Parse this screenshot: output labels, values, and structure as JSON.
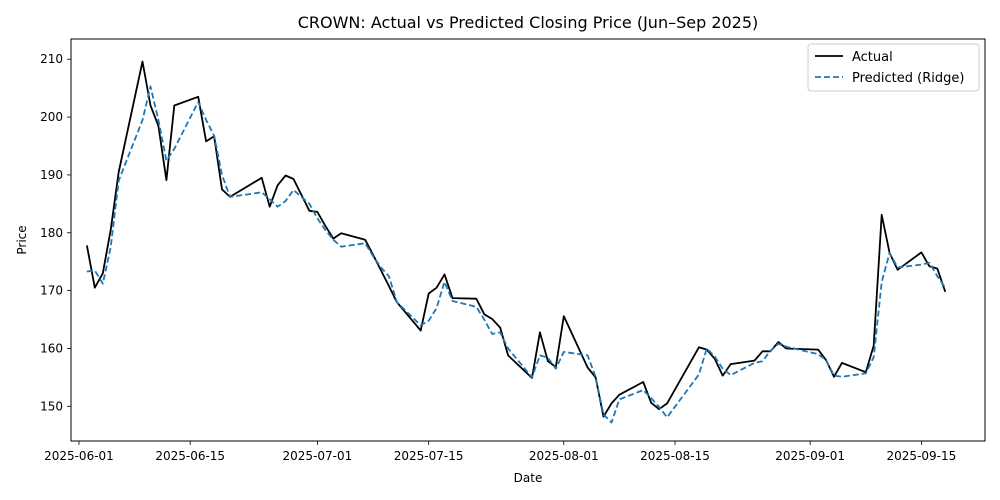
{
  "chart_data": {
    "type": "line",
    "title": "CROWN: Actual vs Predicted Closing Price (Jun–Sep 2025)",
    "xlabel": "Date",
    "ylabel": "Price",
    "xlim": [
      "2025-05-31",
      "2025-09-23"
    ],
    "ylim": [
      144.0,
      213.5
    ],
    "x_ticks": [
      "2025-06-01",
      "2025-06-15",
      "2025-07-01",
      "2025-07-15",
      "2025-08-01",
      "2025-08-15",
      "2025-09-01",
      "2025-09-15"
    ],
    "y_ticks": [
      150,
      160,
      170,
      180,
      190,
      200,
      210
    ],
    "grid": false,
    "legend": "top-right",
    "series": [
      {
        "name": "Actual",
        "color": "#000000",
        "style": "solid",
        "points": [
          [
            "2025-06-02",
            177.8
          ],
          [
            "2025-06-03",
            170.5
          ],
          [
            "2025-06-04",
            173.0
          ],
          [
            "2025-06-05",
            180.5
          ],
          [
            "2025-06-06",
            190.5
          ],
          [
            "2025-06-09",
            209.6
          ],
          [
            "2025-06-10",
            202.0
          ],
          [
            "2025-06-11",
            198.5
          ],
          [
            "2025-06-12",
            189.1
          ],
          [
            "2025-06-13",
            202.0
          ],
          [
            "2025-06-16",
            203.5
          ],
          [
            "2025-06-17",
            195.8
          ],
          [
            "2025-06-18",
            196.7
          ],
          [
            "2025-06-19",
            187.5
          ],
          [
            "2025-06-20",
            186.2
          ],
          [
            "2025-06-24",
            189.5
          ],
          [
            "2025-06-25",
            184.5
          ],
          [
            "2025-06-26",
            188.2
          ],
          [
            "2025-06-27",
            189.9
          ],
          [
            "2025-06-28",
            189.3
          ],
          [
            "2025-06-30",
            183.8
          ],
          [
            "2025-07-01",
            183.6
          ],
          [
            "2025-07-02",
            181.2
          ],
          [
            "2025-07-03",
            179.0
          ],
          [
            "2025-07-04",
            179.9
          ],
          [
            "2025-07-07",
            178.8
          ],
          [
            "2025-07-08",
            176.2
          ],
          [
            "2025-07-09",
            173.5
          ],
          [
            "2025-07-10",
            170.8
          ],
          [
            "2025-07-11",
            168.0
          ],
          [
            "2025-07-14",
            163.1
          ],
          [
            "2025-07-15",
            169.5
          ],
          [
            "2025-07-16",
            170.5
          ],
          [
            "2025-07-17",
            172.8
          ],
          [
            "2025-07-18",
            168.7
          ],
          [
            "2025-07-21",
            168.6
          ],
          [
            "2025-07-22",
            165.9
          ],
          [
            "2025-07-23",
            165.1
          ],
          [
            "2025-07-24",
            163.6
          ],
          [
            "2025-07-25",
            158.8
          ],
          [
            "2025-07-28",
            154.9
          ],
          [
            "2025-07-29",
            162.8
          ],
          [
            "2025-07-30",
            157.8
          ],
          [
            "2025-07-31",
            156.8
          ],
          [
            "2025-08-01",
            165.6
          ],
          [
            "2025-08-04",
            156.7
          ],
          [
            "2025-08-05",
            155.0
          ],
          [
            "2025-08-06",
            148.2
          ],
          [
            "2025-08-07",
            150.5
          ],
          [
            "2025-08-08",
            152.0
          ],
          [
            "2025-08-11",
            154.2
          ],
          [
            "2025-08-12",
            150.6
          ],
          [
            "2025-08-13",
            149.5
          ],
          [
            "2025-08-14",
            150.5
          ],
          [
            "2025-08-18",
            160.2
          ],
          [
            "2025-08-19",
            159.8
          ],
          [
            "2025-08-20",
            158.2
          ],
          [
            "2025-08-21",
            155.3
          ],
          [
            "2025-08-22",
            157.3
          ],
          [
            "2025-08-25",
            157.9
          ],
          [
            "2025-08-26",
            159.5
          ],
          [
            "2025-08-27",
            159.5
          ],
          [
            "2025-08-28",
            161.1
          ],
          [
            "2025-08-29",
            160.0
          ],
          [
            "2025-09-02",
            159.8
          ],
          [
            "2025-09-03",
            158.0
          ],
          [
            "2025-09-04",
            155.1
          ],
          [
            "2025-09-05",
            157.5
          ],
          [
            "2025-09-08",
            155.9
          ],
          [
            "2025-09-09",
            160.5
          ],
          [
            "2025-09-10",
            183.1
          ],
          [
            "2025-09-11",
            176.5
          ],
          [
            "2025-09-12",
            173.6
          ],
          [
            "2025-09-15",
            176.6
          ],
          [
            "2025-09-16",
            174.2
          ],
          [
            "2025-09-17",
            173.8
          ],
          [
            "2025-09-18",
            169.8
          ]
        ]
      },
      {
        "name": "Predicted (Ridge)",
        "color": "#1f77b4",
        "style": "dashed",
        "points": [
          [
            "2025-06-02",
            173.3
          ],
          [
            "2025-06-03",
            173.5
          ],
          [
            "2025-06-04",
            171.2
          ],
          [
            "2025-06-05",
            177.5
          ],
          [
            "2025-06-06",
            189.0
          ],
          [
            "2025-06-09",
            199.5
          ],
          [
            "2025-06-10",
            205.3
          ],
          [
            "2025-06-11",
            199.5
          ],
          [
            "2025-06-12",
            192.5
          ],
          [
            "2025-06-13",
            194.5
          ],
          [
            "2025-06-16",
            202.6
          ],
          [
            "2025-06-17",
            199.5
          ],
          [
            "2025-06-18",
            196.8
          ],
          [
            "2025-06-19",
            190.0
          ],
          [
            "2025-06-20",
            186.2
          ],
          [
            "2025-06-24",
            187.0
          ],
          [
            "2025-06-25",
            185.8
          ],
          [
            "2025-06-26",
            184.5
          ],
          [
            "2025-06-27",
            185.5
          ],
          [
            "2025-06-28",
            187.4
          ],
          [
            "2025-06-30",
            185.0
          ],
          [
            "2025-07-01",
            182.5
          ],
          [
            "2025-07-02",
            180.5
          ],
          [
            "2025-07-03",
            178.8
          ],
          [
            "2025-07-04",
            177.6
          ],
          [
            "2025-07-07",
            178.2
          ],
          [
            "2025-07-08",
            176.0
          ],
          [
            "2025-07-09",
            174.0
          ],
          [
            "2025-07-10",
            172.5
          ],
          [
            "2025-07-11",
            168.0
          ],
          [
            "2025-07-14",
            164.0
          ],
          [
            "2025-07-15",
            164.8
          ],
          [
            "2025-07-16",
            167.0
          ],
          [
            "2025-07-17",
            171.5
          ],
          [
            "2025-07-18",
            168.2
          ],
          [
            "2025-07-21",
            167.2
          ],
          [
            "2025-07-22",
            165.0
          ],
          [
            "2025-07-23",
            162.5
          ],
          [
            "2025-07-24",
            162.8
          ],
          [
            "2025-07-25",
            160.0
          ],
          [
            "2025-07-28",
            155.0
          ],
          [
            "2025-07-29",
            158.8
          ],
          [
            "2025-07-30",
            158.4
          ],
          [
            "2025-07-31",
            156.5
          ],
          [
            "2025-08-01",
            159.4
          ],
          [
            "2025-08-04",
            158.8
          ],
          [
            "2025-08-05",
            155.1
          ],
          [
            "2025-08-06",
            148.6
          ],
          [
            "2025-08-07",
            147.2
          ],
          [
            "2025-08-08",
            151.2
          ],
          [
            "2025-08-11",
            152.8
          ],
          [
            "2025-08-12",
            151.4
          ],
          [
            "2025-08-13",
            149.9
          ],
          [
            "2025-08-14",
            148.1
          ],
          [
            "2025-08-18",
            155.5
          ],
          [
            "2025-08-19",
            160.0
          ],
          [
            "2025-08-20",
            158.6
          ],
          [
            "2025-08-21",
            156.5
          ],
          [
            "2025-08-22",
            155.4
          ],
          [
            "2025-08-25",
            157.5
          ],
          [
            "2025-08-26",
            157.8
          ],
          [
            "2025-08-27",
            159.6
          ],
          [
            "2025-08-28",
            160.8
          ],
          [
            "2025-08-29",
            160.3
          ],
          [
            "2025-09-02",
            159.0
          ],
          [
            "2025-09-03",
            158.0
          ],
          [
            "2025-09-04",
            155.3
          ],
          [
            "2025-09-05",
            155.1
          ],
          [
            "2025-09-08",
            155.7
          ],
          [
            "2025-09-09",
            158.5
          ],
          [
            "2025-09-10",
            171.5
          ],
          [
            "2025-09-11",
            176.5
          ],
          [
            "2025-09-12",
            174.0
          ],
          [
            "2025-09-15",
            174.5
          ],
          [
            "2025-09-16",
            174.8
          ],
          [
            "2025-09-17",
            172.5
          ],
          [
            "2025-09-18",
            170.5
          ]
        ]
      }
    ]
  }
}
